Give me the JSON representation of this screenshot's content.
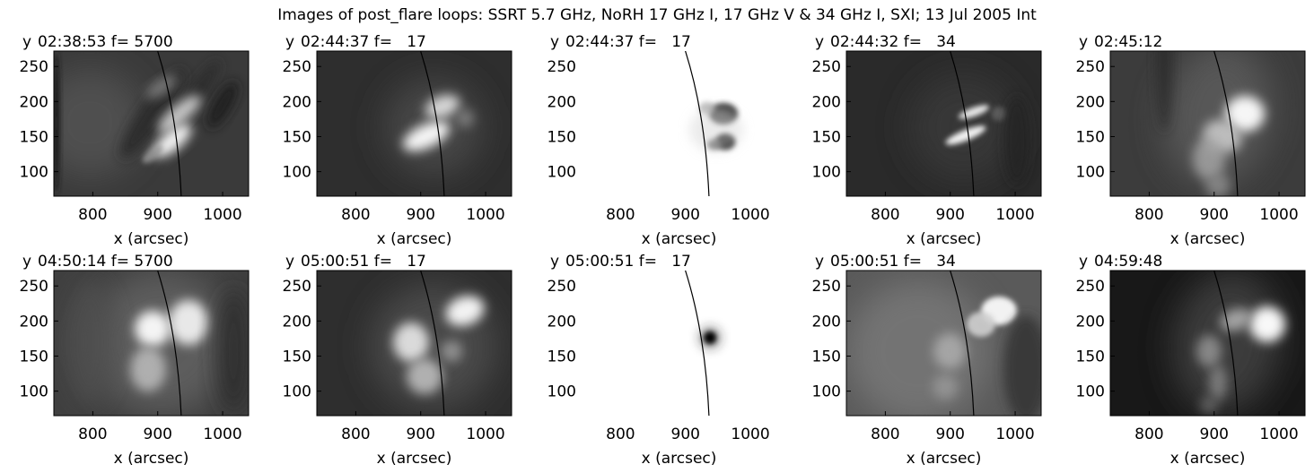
{
  "figure": {
    "title": "Images of post_flare loops: SSRT 5.7 GHz, NoRH 17 GHz I, 17 GHz V & 34 GHz I, SXI; 13 Jul 2005 Int"
  },
  "axes": {
    "y_axis_name": "y",
    "xlabel": "x (arcsec)",
    "x_ticks": [
      800,
      900,
      1000
    ],
    "x_range": [
      740,
      1040
    ],
    "y_ticks": [
      100,
      150,
      200,
      250
    ],
    "y_range": [
      65,
      272
    ]
  },
  "rows": [
    {
      "panels": [
        {
          "header": "02:38:53 f= 5700",
          "instrument": "SSRT 5.7 GHz",
          "style": "ssrt_early",
          "bg_color": "#3a3a3a",
          "frame": true,
          "x_ticks_shown": [
            800,
            900,
            1000
          ]
        },
        {
          "header": "02:44:37 f=   17",
          "instrument": "NoRH 17 GHz I",
          "style": "norh_i_early",
          "bg_color": "#2e2e2e",
          "frame": true,
          "x_ticks_shown": [
            800,
            900,
            1000
          ]
        },
        {
          "header": "02:44:37 f=   17",
          "instrument": "NoRH 17 GHz V",
          "style": "norh_v_early",
          "bg_color": "#ffffff",
          "frame": false,
          "x_ticks_shown": [
            800,
            900,
            1000
          ]
        },
        {
          "header": "02:44:32 f=   34",
          "instrument": "NoRH 34 GHz I",
          "style": "n34_early",
          "bg_color": "#2a2a2a",
          "frame": true,
          "x_ticks_shown": [
            800,
            900,
            1000
          ]
        },
        {
          "header": "02:45:12",
          "instrument": "SXI",
          "style": "sxi_early",
          "bg_color": "#3c3c3c",
          "frame": true,
          "x_ticks_shown": [
            800,
            900,
            1000
          ]
        }
      ]
    },
    {
      "panels": [
        {
          "header": "04:50:14 f= 5700",
          "instrument": "SSRT 5.7 GHz",
          "style": "ssrt_late",
          "bg_color": "#404040",
          "frame": true,
          "x_ticks_shown": [
            800,
            900,
            1000
          ]
        },
        {
          "header": "05:00:51 f=   17",
          "instrument": "NoRH 17 GHz I",
          "style": "norh_i_late",
          "bg_color": "#2e2e2e",
          "frame": true,
          "x_ticks_shown": [
            800,
            900,
            1000
          ]
        },
        {
          "header": "05:00:51 f=   17",
          "instrument": "NoRH 17 GHz V",
          "style": "norh_v_late",
          "bg_color": "#ffffff",
          "frame": false,
          "x_ticks_shown": [
            800,
            900,
            1000
          ]
        },
        {
          "header": "05:00:51 f=   34",
          "instrument": "NoRH 34 GHz I",
          "style": "n34_late",
          "bg_color": "#5a5a5a",
          "frame": true,
          "x_ticks_shown": [
            800,
            900,
            1000
          ]
        },
        {
          "header": "04:59:48",
          "instrument": "SXI",
          "style": "sxi_late",
          "bg_color": "#181818",
          "frame": true,
          "x_ticks_shown": [
            800,
            900,
            1000
          ]
        }
      ]
    }
  ],
  "limb_color": "#000000"
}
